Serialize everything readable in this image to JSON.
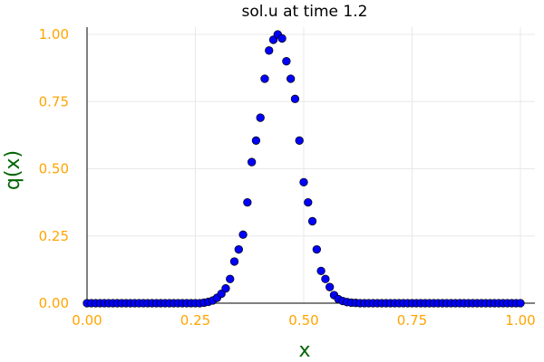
{
  "chart_data": {
    "type": "scatter",
    "title": "sol.u at time 1.2",
    "xlabel": "x",
    "ylabel": "q(x)",
    "xlim": [
      0,
      1
    ],
    "ylim": [
      0,
      1
    ],
    "x_ticks": [
      "0.00",
      "0.25",
      "0.50",
      "0.75",
      "1.00"
    ],
    "y_ticks": [
      "0.00",
      "0.25",
      "0.50",
      "0.75",
      "1.00"
    ],
    "grid": true,
    "legend": "none",
    "colors": {
      "marker_fill": "#0000ff",
      "marker_stroke": "#000000",
      "tick_labels": "#ffa500",
      "axis_labels": "#006400",
      "axes": "#000000",
      "grid": "#e8e8e8"
    },
    "x": [
      0.0,
      0.01,
      0.02,
      0.03,
      0.04,
      0.05,
      0.06,
      0.07,
      0.08,
      0.09,
      0.1,
      0.11,
      0.12,
      0.13,
      0.14,
      0.15,
      0.16,
      0.17,
      0.18,
      0.19,
      0.2,
      0.21,
      0.22,
      0.23,
      0.24,
      0.25,
      0.26,
      0.27,
      0.28,
      0.29,
      0.3,
      0.31,
      0.32,
      0.33,
      0.34,
      0.35,
      0.36,
      0.37,
      0.38,
      0.39,
      0.4,
      0.41,
      0.42,
      0.43,
      0.44,
      0.45,
      0.46,
      0.47,
      0.48,
      0.49,
      0.5,
      0.51,
      0.52,
      0.53,
      0.54,
      0.55,
      0.56,
      0.57,
      0.58,
      0.59,
      0.6,
      0.61,
      0.62,
      0.63,
      0.64,
      0.65,
      0.66,
      0.67,
      0.68,
      0.69,
      0.7,
      0.71,
      0.72,
      0.73,
      0.74,
      0.75,
      0.76,
      0.77,
      0.78,
      0.79,
      0.8,
      0.81,
      0.82,
      0.83,
      0.84,
      0.85,
      0.86,
      0.87,
      0.88,
      0.89,
      0.9,
      0.91,
      0.92,
      0.93,
      0.94,
      0.95,
      0.96,
      0.97,
      0.98,
      0.99,
      1.0
    ],
    "y": [
      0.0,
      0.0,
      0.0,
      0.0,
      0.0,
      0.0,
      0.0,
      0.0,
      0.0,
      0.0,
      0.0,
      0.0,
      0.0,
      0.0,
      0.0,
      0.0,
      0.0,
      0.0,
      0.0,
      0.0,
      0.0,
      0.0,
      0.0,
      0.0,
      0.0,
      0.0,
      0.0,
      0.002,
      0.005,
      0.01,
      0.02,
      0.035,
      0.055,
      0.09,
      0.155,
      0.2,
      0.255,
      0.375,
      0.525,
      0.605,
      0.69,
      0.835,
      0.94,
      0.98,
      1.0,
      0.985,
      0.9,
      0.835,
      0.76,
      0.605,
      0.45,
      0.375,
      0.305,
      0.2,
      0.12,
      0.09,
      0.06,
      0.03,
      0.015,
      0.008,
      0.004,
      0.002,
      0.001,
      0.0,
      0.0,
      0.0,
      0.0,
      0.0,
      0.0,
      0.0,
      0.0,
      0.0,
      0.0,
      0.0,
      0.0,
      0.0,
      0.0,
      0.0,
      0.0,
      0.0,
      0.0,
      0.0,
      0.0,
      0.0,
      0.0,
      0.0,
      0.0,
      0.0,
      0.0,
      0.0,
      0.0,
      0.0,
      0.0,
      0.0,
      0.0,
      0.0,
      0.0,
      0.0,
      0.0,
      0.0,
      0.0
    ]
  }
}
